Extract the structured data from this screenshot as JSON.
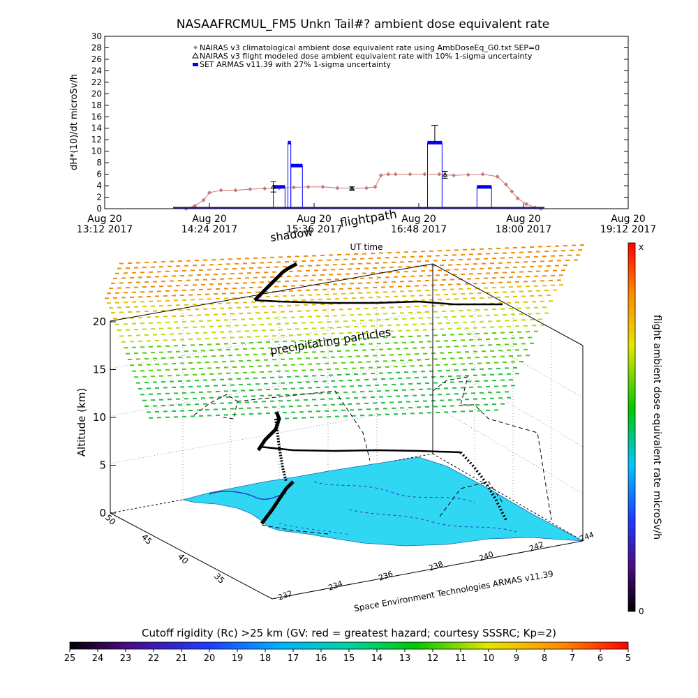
{
  "top_chart": {
    "title": "NASAAFRCMUL_FM5 Unkn Tail#? ambient dose equivalent rate",
    "ylabel": "dH*(10)/dt microSv/h",
    "xlabel": "UT time",
    "ylim": [
      0,
      30
    ],
    "y_ticks": [
      "0",
      "2",
      "4",
      "6",
      "8",
      "10",
      "12",
      "14",
      "16",
      "18",
      "20",
      "22",
      "24",
      "26",
      "28",
      "30"
    ],
    "x_ticks": [
      {
        "line1": "Aug 20",
        "line2": "13:12 2017",
        "t": 0
      },
      {
        "line1": "Aug 20",
        "line2": "14:24 2017",
        "t": 72
      },
      {
        "line1": "Aug 20",
        "line2": "15:36 2017",
        "t": 144
      },
      {
        "line1": "Aug 20",
        "line2": "16:48 2017",
        "t": 216
      },
      {
        "line1": "Aug 20",
        "line2": "18:00 2017",
        "t": 288
      },
      {
        "line1": "Aug 20",
        "line2": "19:12 2017",
        "t": 360
      }
    ],
    "legend": [
      {
        "label": "NAIRAS v3 climatological ambient dose equivalent rate using AmbDoseEq_G0.txt SEP=0",
        "color": "#c87878",
        "marker": "diamond"
      },
      {
        "label": "NAIRAS v3 flight modeled dose ambient equivalent rate with 10% 1-sigma uncertainty",
        "color": "#000000",
        "marker": "triangle"
      },
      {
        "label": "SET ARMAS v11.39 with 27% 1-sigma uncertainty",
        "color": "#0000ff",
        "marker": "square"
      }
    ]
  },
  "chart_data": [
    {
      "type": "line",
      "title": "NASAAFRCMUL_FM5 Unkn Tail#? ambient dose equivalent rate",
      "xlabel": "UT time",
      "ylabel": "dH*(10)/dt microSv/h",
      "x_unit": "minutes after Aug 20 13:12 2017",
      "xlim": [
        0,
        360
      ],
      "ylim": [
        0,
        30
      ],
      "series": [
        {
          "name": "NAIRAS v3 climatological ambient dose equivalent rate using AmbDoseEq_G0.txt SEP=0",
          "color": "#c87878",
          "x": [
            56,
            62,
            68,
            72,
            80,
            90,
            100,
            110,
            120,
            130,
            140,
            150,
            160,
            170,
            180,
            186,
            190,
            195,
            200,
            210,
            220,
            230,
            240,
            250,
            260,
            270,
            276,
            280,
            284,
            290,
            296,
            300
          ],
          "y": [
            0,
            0.5,
            1.5,
            2.8,
            3.2,
            3.2,
            3.4,
            3.5,
            3.6,
            3.7,
            3.8,
            3.8,
            3.6,
            3.6,
            3.6,
            3.8,
            5.8,
            6.0,
            6.0,
            6.0,
            6.0,
            6.0,
            5.8,
            5.9,
            6.0,
            5.6,
            4.2,
            3.0,
            1.8,
            0.8,
            0.2,
            0
          ]
        },
        {
          "name": "NAIRAS v3 flight modeled dose ambient equivalent rate with 10% 1-sigma uncertainty",
          "color": "#000000",
          "x": [
            116,
            170,
            234
          ],
          "y": [
            3.8,
            3.5,
            5.9
          ],
          "err": [
            0.9,
            0.3,
            0.6
          ]
        },
        {
          "name": "SET ARMAS v11.39 with 27% 1-sigma uncertainty",
          "color": "#0000ff",
          "segments": [
            {
              "x": [
                116,
                124
              ],
              "y": [
                3.8,
                3.8
              ]
            },
            {
              "x": [
                126,
                128
              ],
              "y": [
                11.5,
                11.5
              ]
            },
            {
              "x": [
                128,
                136
              ],
              "y": [
                7.5,
                7.5
              ]
            },
            {
              "x": [
                222,
                232
              ],
              "y": [
                11.5,
                11.5
              ]
            },
            {
              "x": [
                256,
                266
              ],
              "y": [
                3.8,
                3.8
              ]
            }
          ],
          "err": {
            "x": 227,
            "y": 11.5,
            "upper": 14.5
          }
        }
      ]
    },
    {
      "type": "heatmap",
      "title": "Cutoff rigidity (Rc) >25 km (GV: red = greatest hazard; courtesy SSSRC; Kp=2)",
      "colorbar_ticks": [
        "25",
        "24",
        "23",
        "22",
        "21",
        "20",
        "19",
        "18",
        "17",
        "16",
        "15",
        "14",
        "13",
        "12",
        "11",
        "10",
        "9",
        "8",
        "7",
        "6",
        "5"
      ],
      "xlim": [
        25,
        5
      ]
    }
  ],
  "scene": {
    "ylabel": "Altitude (km)",
    "z_ticks": [
      "0",
      "5",
      "10",
      "15",
      "20"
    ],
    "lat_ticks": [
      "50",
      "45",
      "40",
      "35"
    ],
    "lon_ticks": [
      "232",
      "234",
      "236",
      "238",
      "240",
      "242",
      "244"
    ],
    "annotations": {
      "shadow": "shadow",
      "flightpath": "flightpath",
      "precip": "precipitating particles",
      "credit": "Space Environment Technologies ARMAS v11.39"
    },
    "right_colorbar": {
      "label": "flight ambient dose equivalent rate microSv/h",
      "top": "x",
      "bottom": "0"
    }
  },
  "bottom_colorbar": {
    "title": "Cutoff rigidity (Rc) >25 km (GV: red = greatest hazard; courtesy SSSRC; Kp=2)"
  },
  "colors": {
    "climatological": "#c87878",
    "modeled": "#000000",
    "armas": "#0000ff",
    "ground": "#2fd7f2"
  }
}
